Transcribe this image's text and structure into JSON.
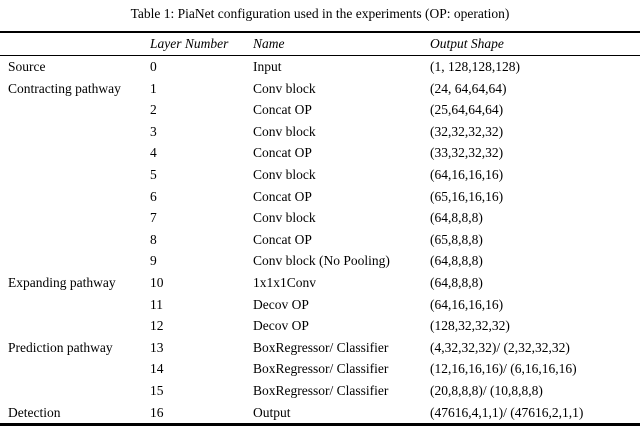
{
  "caption": "Table 1: PiaNet configuration used in the experiments (OP: operation)",
  "table": {
    "headers": [
      "",
      "Layer Number",
      "Name",
      "Output Shape"
    ],
    "rows": [
      {
        "group": "Source",
        "layer": "0",
        "name": "Input",
        "shape": "(1, 128,128,128)"
      },
      {
        "group": "Contracting pathway",
        "layer": "1",
        "name": "Conv block",
        "shape": "(24, 64,64,64)"
      },
      {
        "group": "",
        "layer": "2",
        "name": "Concat OP",
        "shape": "(25,64,64,64)"
      },
      {
        "group": "",
        "layer": "3",
        "name": "Conv block",
        "shape": "(32,32,32,32)"
      },
      {
        "group": "",
        "layer": "4",
        "name": "Concat OP",
        "shape": "(33,32,32,32)"
      },
      {
        "group": "",
        "layer": "5",
        "name": "Conv block",
        "shape": "(64,16,16,16)"
      },
      {
        "group": "",
        "layer": "6",
        "name": "Concat OP",
        "shape": "(65,16,16,16)"
      },
      {
        "group": "",
        "layer": "7",
        "name": "Conv block",
        "shape": "(64,8,8,8)"
      },
      {
        "group": "",
        "layer": "8",
        "name": "Concat OP",
        "shape": "(65,8,8,8)"
      },
      {
        "group": "",
        "layer": "9",
        "name": "Conv block (No Pooling)",
        "shape": "(64,8,8,8)"
      },
      {
        "group": "Expanding pathway",
        "layer": "10",
        "name": "1x1x1Conv",
        "shape": "(64,8,8,8)"
      },
      {
        "group": "",
        "layer": "11",
        "name": "Decov OP",
        "shape": "(64,16,16,16)"
      },
      {
        "group": "",
        "layer": "12",
        "name": "Decov OP",
        "shape": "(128,32,32,32)"
      },
      {
        "group": "Prediction pathway",
        "layer": "13",
        "name": "BoxRegressor/ Classifier",
        "shape": "(4,32,32,32)/ (2,32,32,32)"
      },
      {
        "group": "",
        "layer": "14",
        "name": "BoxRegressor/ Classifier",
        "shape": "(12,16,16,16)/ (6,16,16,16)"
      },
      {
        "group": "",
        "layer": "15",
        "name": "BoxRegressor/ Classifier",
        "shape": "(20,8,8,8)/ (10,8,8,8)"
      },
      {
        "group": "Detection",
        "layer": "16",
        "name": "Output",
        "shape": "(47616,4,1,1)/ (47616,2,1,1)"
      }
    ]
  }
}
